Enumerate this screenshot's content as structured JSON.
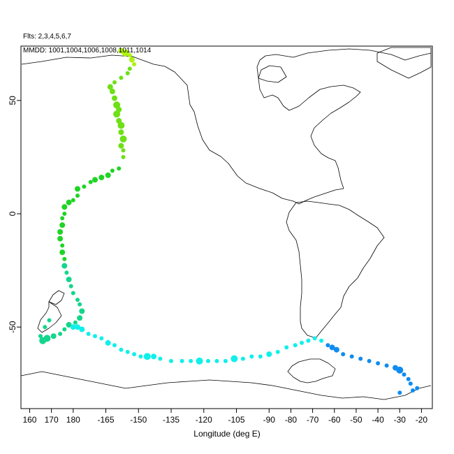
{
  "header": {
    "flights_label": "Flts: 2,3,4,5,6,7",
    "dates_label": "MMDD: 1001,1004,1006,1008,1011,1014"
  },
  "chart_data": {
    "type": "scatter",
    "xlabel": "Longitude (deg E)",
    "ylabel": "",
    "x_ticks": [
      "160",
      "170",
      "180",
      "-165",
      "-150",
      "-135",
      "-120",
      "-105",
      "-90",
      "-80",
      "-70",
      "-60",
      "-50",
      "-40",
      "-30",
      "-20"
    ],
    "y_ticks": [
      "50",
      "0",
      "-50"
    ],
    "xlim_deg_east": [
      156,
      345
    ],
    "ylim": [
      -86,
      74
    ],
    "grid": false,
    "series": [
      {
        "color": "#aef20f",
        "points": [
          {
            "lon": -158,
            "lat": 72,
            "size": 3
          },
          {
            "lon": -156,
            "lat": 71,
            "size": 4
          },
          {
            "lon": -154,
            "lat": 70,
            "size": 2
          },
          {
            "lon": -153,
            "lat": 68,
            "size": 3
          },
          {
            "lon": -152,
            "lat": 66,
            "size": 2
          }
        ]
      },
      {
        "color": "#6ee016",
        "points": [
          {
            "lon": -154,
            "lat": 64,
            "size": 2
          },
          {
            "lon": -155,
            "lat": 62,
            "size": 2
          },
          {
            "lon": -158,
            "lat": 60,
            "size": 2
          },
          {
            "lon": -161,
            "lat": 58,
            "size": 2
          },
          {
            "lon": -163,
            "lat": 56,
            "size": 3
          },
          {
            "lon": -162,
            "lat": 54,
            "size": 3
          },
          {
            "lon": -161,
            "lat": 51,
            "size": 3
          },
          {
            "lon": -160,
            "lat": 48,
            "size": 4
          },
          {
            "lon": -159,
            "lat": 46,
            "size": 3
          },
          {
            "lon": -160,
            "lat": 44,
            "size": 4
          },
          {
            "lon": -159,
            "lat": 41,
            "size": 3
          },
          {
            "lon": -158,
            "lat": 39,
            "size": 4
          },
          {
            "lon": -158,
            "lat": 36,
            "size": 3
          },
          {
            "lon": -157,
            "lat": 33,
            "size": 4
          },
          {
            "lon": -158,
            "lat": 30,
            "size": 3
          },
          {
            "lon": -157,
            "lat": 28,
            "size": 2
          },
          {
            "lon": -157,
            "lat": 25,
            "size": 2
          }
        ]
      },
      {
        "color": "#1fd424",
        "points": [
          {
            "lon": -159,
            "lat": 20,
            "size": 2
          },
          {
            "lon": -162,
            "lat": 19,
            "size": 2
          },
          {
            "lon": -164,
            "lat": 17,
            "size": 3
          },
          {
            "lon": -167,
            "lat": 16,
            "size": 3
          },
          {
            "lon": -170,
            "lat": 15,
            "size": 3
          },
          {
            "lon": -172,
            "lat": 14,
            "size": 2
          },
          {
            "lon": -175,
            "lat": 12,
            "size": 2
          },
          {
            "lon": -178,
            "lat": 11,
            "size": 3
          },
          {
            "lon": -178,
            "lat": 8,
            "size": 2
          },
          {
            "lon": -180,
            "lat": 6,
            "size": 2
          },
          {
            "lon": 178,
            "lat": 5,
            "size": 3
          },
          {
            "lon": 176,
            "lat": 3,
            "size": 3
          },
          {
            "lon": 176,
            "lat": 0,
            "size": 2
          },
          {
            "lon": 175,
            "lat": -2,
            "size": 2
          },
          {
            "lon": 175,
            "lat": -5,
            "size": 3
          },
          {
            "lon": 174,
            "lat": -8,
            "size": 3
          },
          {
            "lon": 174,
            "lat": -11,
            "size": 3
          },
          {
            "lon": 175,
            "lat": -14,
            "size": 2
          },
          {
            "lon": 175,
            "lat": -17,
            "size": 3
          },
          {
            "lon": 176,
            "lat": -20,
            "size": 2
          }
        ]
      },
      {
        "color": "#13d68b",
        "points": [
          {
            "lon": 176,
            "lat": -23,
            "size": 3
          },
          {
            "lon": 177,
            "lat": -26,
            "size": 2
          },
          {
            "lon": 178,
            "lat": -29,
            "size": 3
          },
          {
            "lon": 179,
            "lat": -32,
            "size": 2
          },
          {
            "lon": 180,
            "lat": -35,
            "size": 2
          },
          {
            "lon": -178,
            "lat": -38,
            "size": 2
          },
          {
            "lon": -177,
            "lat": -40,
            "size": 2
          },
          {
            "lon": -176,
            "lat": -43,
            "size": 3
          },
          {
            "lon": -177,
            "lat": -46,
            "size": 3
          },
          {
            "lon": -179,
            "lat": -48,
            "size": 2
          },
          {
            "lon": 178,
            "lat": -49,
            "size": 3
          },
          {
            "lon": 176,
            "lat": -51,
            "size": 2
          },
          {
            "lon": 174,
            "lat": -53,
            "size": 2
          },
          {
            "lon": 171,
            "lat": -54,
            "size": 3
          },
          {
            "lon": 168,
            "lat": -55,
            "size": 4
          },
          {
            "lon": 166,
            "lat": -56,
            "size": 4
          },
          {
            "lon": 165,
            "lat": -54,
            "size": 2
          },
          {
            "lon": 167,
            "lat": -50,
            "size": 2
          },
          {
            "lon": 169,
            "lat": -47,
            "size": 2
          }
        ]
      },
      {
        "color": "#10f0ea",
        "points": [
          {
            "lon": 180,
            "lat": -50,
            "size": 3
          },
          {
            "lon": -178,
            "lat": -50,
            "size": 3
          },
          {
            "lon": -176,
            "lat": -51,
            "size": 3
          },
          {
            "lon": -173,
            "lat": -53,
            "size": 2
          },
          {
            "lon": -170,
            "lat": -54,
            "size": 2
          },
          {
            "lon": -167,
            "lat": -55,
            "size": 2
          },
          {
            "lon": -164,
            "lat": -57,
            "size": 3
          },
          {
            "lon": -161,
            "lat": -58,
            "size": 2
          },
          {
            "lon": -158,
            "lat": -60,
            "size": 2
          },
          {
            "lon": -155,
            "lat": -61,
            "size": 2
          },
          {
            "lon": -152,
            "lat": -62,
            "size": 2
          },
          {
            "lon": -149,
            "lat": -63,
            "size": 2
          },
          {
            "lon": -146,
            "lat": -63,
            "size": 4
          },
          {
            "lon": -143,
            "lat": -63,
            "size": 3
          },
          {
            "lon": -140,
            "lat": -64,
            "size": 2
          },
          {
            "lon": -135,
            "lat": -65,
            "size": 2
          },
          {
            "lon": -130,
            "lat": -65,
            "size": 2
          },
          {
            "lon": -126,
            "lat": -65,
            "size": 2
          },
          {
            "lon": -122,
            "lat": -65,
            "size": 4
          },
          {
            "lon": -118,
            "lat": -65,
            "size": 2
          },
          {
            "lon": -114,
            "lat": -65,
            "size": 2
          },
          {
            "lon": -110,
            "lat": -65,
            "size": 2
          },
          {
            "lon": -106,
            "lat": -64,
            "size": 4
          },
          {
            "lon": -102,
            "lat": -64,
            "size": 2
          },
          {
            "lon": -98,
            "lat": -63,
            "size": 2
          },
          {
            "lon": -94,
            "lat": -63,
            "size": 2
          },
          {
            "lon": -90,
            "lat": -62,
            "size": 3
          },
          {
            "lon": -86,
            "lat": -61,
            "size": 2
          },
          {
            "lon": -82,
            "lat": -59,
            "size": 2
          },
          {
            "lon": -78,
            "lat": -58,
            "size": 2
          },
          {
            "lon": -75,
            "lat": -57,
            "size": 2
          },
          {
            "lon": -72,
            "lat": -56,
            "size": 2
          },
          {
            "lon": -69,
            "lat": -55,
            "size": 2
          },
          {
            "lon": -66,
            "lat": -56,
            "size": 2
          }
        ]
      },
      {
        "color": "#0f8cf0",
        "points": [
          {
            "lon": -63,
            "lat": -58,
            "size": 2
          },
          {
            "lon": -61,
            "lat": -59,
            "size": 3
          },
          {
            "lon": -59,
            "lat": -60,
            "size": 3
          },
          {
            "lon": -56,
            "lat": -62,
            "size": 2
          },
          {
            "lon": -52,
            "lat": -63,
            "size": 2
          },
          {
            "lon": -48,
            "lat": -64,
            "size": 2
          },
          {
            "lon": -44,
            "lat": -65,
            "size": 2
          },
          {
            "lon": -40,
            "lat": -66,
            "size": 2
          },
          {
            "lon": -36,
            "lat": -67,
            "size": 2
          },
          {
            "lon": -32,
            "lat": -68,
            "size": 3
          },
          {
            "lon": -30,
            "lat": -69,
            "size": 4
          },
          {
            "lon": -28,
            "lat": -71,
            "size": 2
          },
          {
            "lon": -26,
            "lat": -73,
            "size": 2
          },
          {
            "lon": -25,
            "lat": -75,
            "size": 2
          },
          {
            "lon": -22,
            "lat": -77,
            "size": 2
          },
          {
            "lon": -24,
            "lat": -78,
            "size": 2
          },
          {
            "lon": -30,
            "lat": -79,
            "size": 2
          }
        ]
      }
    ]
  }
}
